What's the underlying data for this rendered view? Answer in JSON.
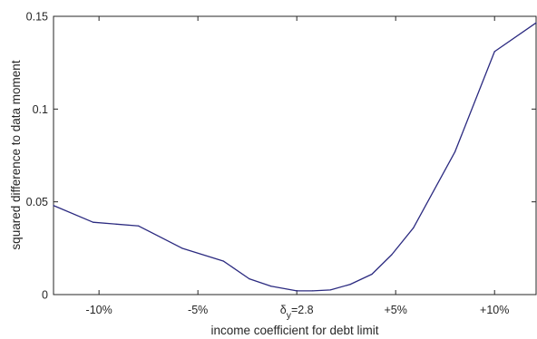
{
  "chart_data": {
    "type": "line",
    "title": "",
    "xlabel": "income coefficient for debt limit",
    "ylabel": "squared difference to data moment",
    "x_ticks": [
      {
        "value": -10,
        "label": "-10%"
      },
      {
        "value": -5,
        "label": "-5%"
      },
      {
        "value": 0,
        "label": "δy=2.8",
        "label_main": "δ",
        "label_sub": "y",
        "label_rest": "=2.8"
      },
      {
        "value": 5,
        "label": "+5%"
      },
      {
        "value": 10,
        "label": "+10%"
      }
    ],
    "y_ticks": [
      {
        "value": 0,
        "label": "0"
      },
      {
        "value": 0.05,
        "label": "0.05"
      },
      {
        "value": 0.1,
        "label": "0.1"
      },
      {
        "value": 0.15,
        "label": "0.15"
      }
    ],
    "xlim": [
      -12.3,
      12.1
    ],
    "ylim": [
      0,
      0.15
    ],
    "grid": false,
    "series": [
      {
        "color": "#2b2a80",
        "x": [
          -12.3,
          -10.3,
          -8.0,
          -5.8,
          -3.7,
          -2.4,
          -1.3,
          0.0,
          0.8,
          1.7,
          2.7,
          3.8,
          4.8,
          5.9,
          8.0,
          10.0,
          12.1
        ],
        "y": [
          0.048,
          0.039,
          0.037,
          0.025,
          0.018,
          0.0085,
          0.0045,
          0.002,
          0.002,
          0.0025,
          0.0055,
          0.011,
          0.0215,
          0.036,
          0.077,
          0.131,
          0.1465
        ]
      }
    ]
  }
}
